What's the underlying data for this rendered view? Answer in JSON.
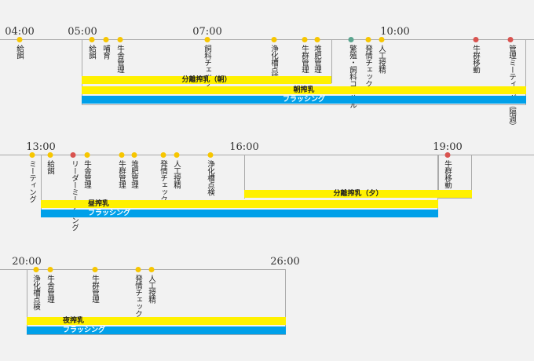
{
  "row1": {
    "hours": [
      "04:00",
      "05:00",
      "07:00",
      "10:00"
    ],
    "events": [
      "給餌",
      "給餌",
      "哺育",
      "牛舎管理",
      "飼料チェック",
      "浄化槽点検",
      "牛群管理",
      "堆肥管理",
      "繁殖・飼料コンサル",
      "発情チェック",
      "人工授精",
      "牛群移動",
      "管理ミーティング（隔週）"
    ],
    "bars": [
      "分離搾乳（朝）",
      "朝搾乳",
      "フラッシング"
    ]
  },
  "row2": {
    "hours": [
      "13:00",
      "16:00",
      "19:00"
    ],
    "events": [
      "ミーティング",
      "給餌",
      "リーダーミーティング",
      "牛舎管理",
      "牛群管理",
      "堆肥管理",
      "発情チェック",
      "人工授精",
      "浄化槽点検",
      "牛群移動"
    ],
    "bars": [
      "分離搾乳（夕）",
      "昼搾乳",
      "フラッシング"
    ]
  },
  "row3": {
    "hours": [
      "20:00",
      "26:00"
    ],
    "events": [
      "浄化槽点検",
      "牛舎管理",
      "牛群管理",
      "発情チェック",
      "人工授精"
    ],
    "bars": [
      "夜搾乳",
      "フラッシング"
    ]
  },
  "colors": {
    "yellow_dot": "#f7c600",
    "red_dot": "#d9534f",
    "teal_dot": "#5aa58f",
    "yellow_bar": "#fff100",
    "blue_bar": "#00a0e9"
  }
}
